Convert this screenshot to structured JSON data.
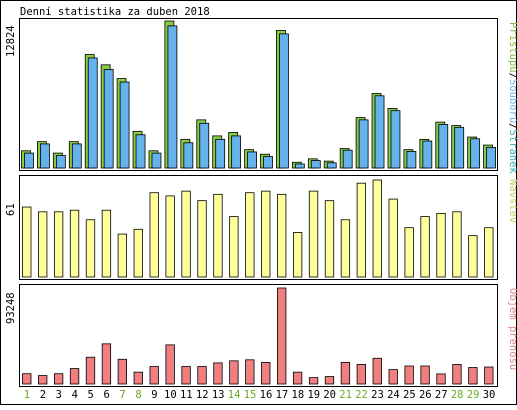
{
  "chart_data": [
    {
      "type": "bar",
      "title": "Denní statistika za duben 2018",
      "ylabel": "12824",
      "legend": [
        "Přístupů",
        "Souborů",
        "Stránek"
      ],
      "legend_sep": "/",
      "legend_colors": [
        "#80c040",
        "#6ab4f0",
        "#38b6b6"
      ],
      "categories": [
        "1",
        "2",
        "3",
        "4",
        "5",
        "6",
        "7",
        "8",
        "9",
        "10",
        "11",
        "12",
        "13",
        "14",
        "15",
        "16",
        "17",
        "18",
        "19",
        "20",
        "21",
        "22",
        "23",
        "24",
        "25",
        "26",
        "27",
        "28",
        "29",
        "30"
      ],
      "weekend": [
        "1",
        "7",
        "8",
        "14",
        "15",
        "21",
        "22",
        "28",
        "29"
      ],
      "ylim": [
        0,
        12824
      ],
      "series": [
        {
          "name": "Přístupů",
          "color": "#88cc44",
          "values": [
            1500,
            2300,
            1300,
            2300,
            9900,
            9000,
            7800,
            3200,
            1500,
            12824,
            2500,
            4200,
            2800,
            3100,
            1600,
            1200,
            12000,
            500,
            800,
            600,
            1700,
            4400,
            6500,
            5200,
            1600,
            2500,
            4000,
            3700,
            2700,
            2000
          ]
        },
        {
          "name": "Souborů",
          "color": "#66b2ee",
          "values": [
            1300,
            2100,
            1100,
            2100,
            9600,
            8600,
            7500,
            2900,
            1300,
            12400,
            2200,
            3900,
            2500,
            2800,
            1400,
            1000,
            11700,
            350,
            650,
            450,
            1550,
            4200,
            6300,
            5000,
            1450,
            2350,
            3800,
            3550,
            2550,
            1800
          ]
        },
        {
          "name": "Stránek",
          "color": "#44b8b8",
          "values": [
            0,
            0,
            0,
            0,
            0,
            0,
            0,
            0,
            0,
            0,
            0,
            0,
            0,
            0,
            0,
            0,
            0,
            0,
            0,
            0,
            0,
            0,
            0,
            0,
            0,
            0,
            0,
            0,
            0,
            0
          ]
        }
      ]
    },
    {
      "type": "bar",
      "ylabel": "61",
      "legend": [
        "Návštěv"
      ],
      "legend_colors": [
        "#cccc66"
      ],
      "ylim": [
        0,
        61
      ],
      "series": [
        {
          "name": "Návštěv",
          "color": "#ffff99",
          "values": [
            44,
            41,
            41,
            42,
            36,
            42,
            27,
            30,
            53,
            51,
            54,
            48,
            52,
            38,
            53,
            54,
            52,
            28,
            54,
            48,
            36,
            59,
            61,
            49,
            31,
            38,
            40,
            41,
            26,
            31
          ]
        }
      ]
    },
    {
      "type": "bar",
      "ylabel": "93248",
      "legend": [
        "Objem přenosu"
      ],
      "legend_colors": [
        "#dd8888"
      ],
      "ylim": [
        0,
        93248
      ],
      "series": [
        {
          "name": "Objem přenosu",
          "color": "#f08080",
          "values": [
            10000,
            8200,
            10000,
            15000,
            26000,
            39000,
            24000,
            11500,
            17000,
            38000,
            17000,
            17000,
            20500,
            22500,
            23500,
            21000,
            93248,
            11500,
            6200,
            7200,
            21000,
            19000,
            25000,
            14000,
            17500,
            17500,
            9800,
            19000,
            16000,
            16500
          ]
        }
      ]
    }
  ]
}
